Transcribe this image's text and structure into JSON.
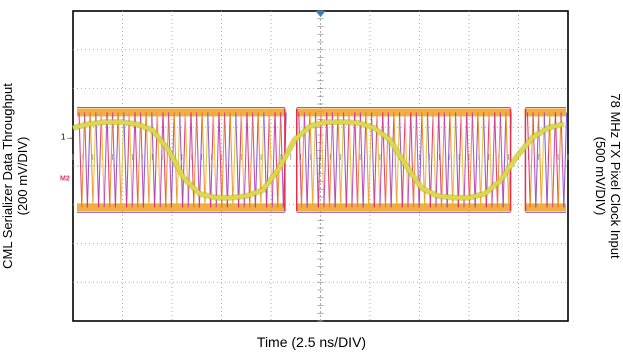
{
  "chart_data": {
    "type": "line",
    "title": "",
    "xlabel": "Time (2.5 ns/DIV)",
    "ylabel_left": [
      "CML Serializer Data Throughput",
      "(200 mV/DIV)"
    ],
    "ylabel_right": [
      "78 MHz TX Pixel Clock Input",
      "(500 mV/DIV)"
    ],
    "grid": true,
    "x_divisions": 10,
    "y_divisions": 8,
    "xlim": [
      0,
      25
    ],
    "x_unit": "ns",
    "series": [
      {
        "channel": "1",
        "color": "#ddd84a",
        "scale_mv_per_div": 500,
        "period_ns": 12.8,
        "x": [
          0.0,
          0.8,
          1.6,
          2.4,
          3.2,
          4.0,
          4.8,
          5.6,
          6.4,
          7.2,
          8.0,
          8.8,
          9.6,
          10.4,
          11.2,
          12.0,
          12.8,
          13.6,
          14.4,
          15.2,
          16.0,
          16.8,
          17.6,
          18.4,
          19.2,
          20.0,
          20.8,
          21.6,
          22.4,
          23.2,
          24.0,
          24.8
        ],
        "y_div": [
          0.75,
          0.85,
          0.9,
          0.9,
          0.85,
          0.7,
          0.2,
          -0.55,
          -0.95,
          -1.05,
          -1.05,
          -1.0,
          -0.85,
          -0.3,
          0.45,
          0.8,
          0.9,
          0.9,
          0.88,
          0.75,
          0.45,
          -0.2,
          -0.8,
          -1.0,
          -1.05,
          -1.05,
          -0.95,
          -0.6,
          0.0,
          0.5,
          0.75,
          0.85
        ]
      },
      {
        "channel": "2",
        "color": "#e0306a",
        "scale_mv_per_div": 200,
        "pattern": "serialized data eye",
        "high_level_div": 1.15,
        "low_level_div": -1.3,
        "sync_gaps_ns": [
          0.0,
          12.8
        ]
      }
    ],
    "markers": {
      "trigger": "top-center",
      "channel_1_ground": "1",
      "channel_2_ground": "M2"
    }
  }
}
